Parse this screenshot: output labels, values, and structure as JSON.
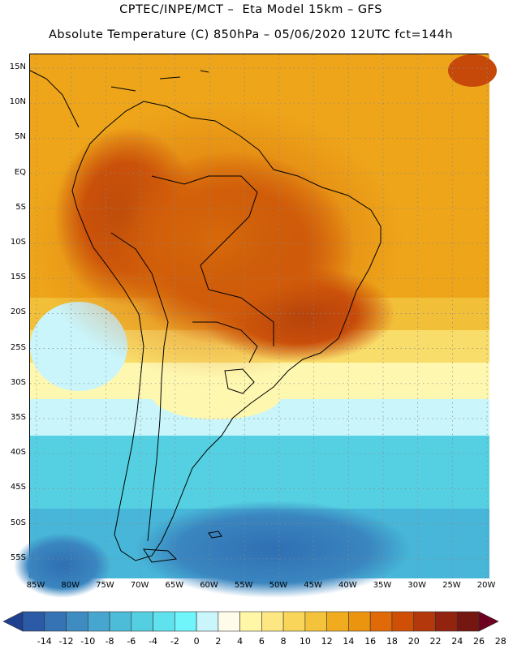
{
  "title_line1": "CPTEC/INPE/MCT –  Eta Model 15km – GFS",
  "title_line2": "Absolute Temperature (C) 850hPa – 05/06/2020 12UTC fct=144h",
  "lat_labels": [
    "15N",
    "10N",
    "5N",
    "EQ",
    "5S",
    "10S",
    "15S",
    "20S",
    "25S",
    "30S",
    "35S",
    "40S",
    "45S",
    "50S",
    "55S"
  ],
  "lon_labels": [
    "85W",
    "80W",
    "75W",
    "70W",
    "65W",
    "60W",
    "55W",
    "50W",
    "45W",
    "40W",
    "35W",
    "30W",
    "25W",
    "20W"
  ],
  "colorbar": {
    "labels": [
      "-14",
      "-12",
      "-10",
      "-8",
      "-6",
      "-4",
      "-2",
      "0",
      "2",
      "4",
      "6",
      "8",
      "10",
      "12",
      "14",
      "16",
      "18",
      "20",
      "22",
      "24",
      "26",
      "28"
    ],
    "colors": [
      "#1f3f8f",
      "#2b5aa6",
      "#3573b5",
      "#3e8cc2",
      "#47a6cf",
      "#4cbcd8",
      "#54cfe2",
      "#60e2ee",
      "#6ff5fa",
      "#c9f5fb",
      "#fffbea",
      "#fff6a8",
      "#fde783",
      "#f9d65a",
      "#f4c23b",
      "#f0ac1e",
      "#eb9410",
      "#e06a08",
      "#cf4f07",
      "#b3380b",
      "#92230f",
      "#751611",
      "#6e001f"
    ]
  }
}
